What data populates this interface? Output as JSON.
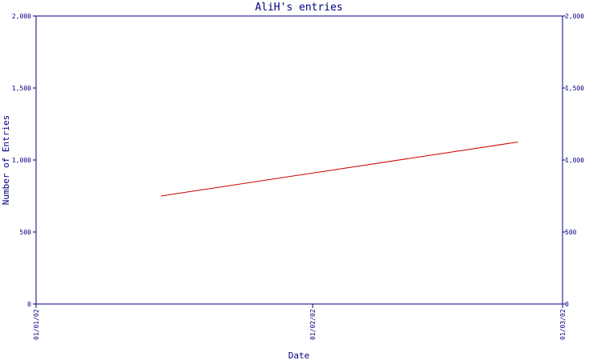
{
  "chart_data": {
    "type": "line",
    "title": "AliH's entries",
    "xlabel": "Date",
    "ylabel": "Number of Entries",
    "x_tick_labels": [
      "01/01/02",
      "01/02/02",
      "01/03/02"
    ],
    "x_range": [
      "01/01/02",
      "01/03/02"
    ],
    "ylim": [
      0,
      2000
    ],
    "y_ticks": [
      0,
      500,
      1000,
      1500,
      2000
    ],
    "y_tick_labels": [
      "0",
      "500",
      "1,000",
      "1,500",
      "2,000"
    ],
    "secondary_y_axis": true,
    "grid": false,
    "series": [
      {
        "color": "#cc0000",
        "points": [
          {
            "x": "2002-01-15",
            "y": 750
          },
          {
            "x": "2002-02-24",
            "y": 1125
          }
        ]
      }
    ]
  },
  "colors": {
    "axis": "#000080",
    "line": "#cc0000",
    "background": "#ffffff"
  }
}
